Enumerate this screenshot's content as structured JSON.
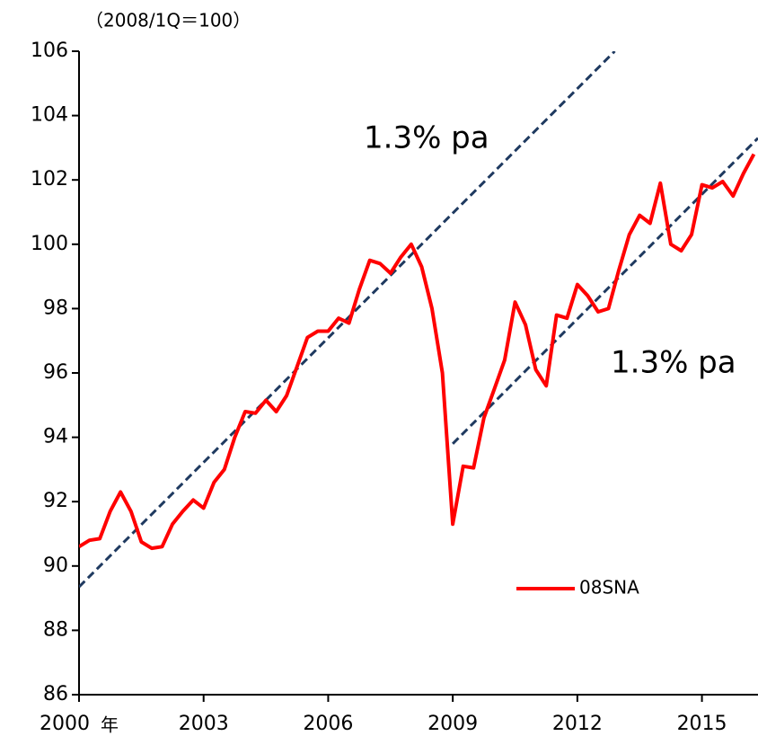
{
  "chart_data": {
    "type": "line",
    "y_unit_label": "（2008/1Q＝100）",
    "x_unit_label": "年",
    "annotations": [
      "1.3% pa",
      "1.3% pa"
    ],
    "xlim": [
      2000,
      2016.35
    ],
    "xticks": [
      2000,
      2003,
      2006,
      2009,
      2012,
      2015
    ],
    "ylim": [
      86,
      106
    ],
    "yticks": [
      86,
      88,
      90,
      92,
      94,
      96,
      98,
      100,
      102,
      104,
      106
    ],
    "legend": "lower right",
    "series": [
      {
        "name": "08SNA",
        "color": "#ff0000",
        "x": [
          2000,
          2000.25,
          2000.5,
          2000.75,
          2001,
          2001.25,
          2001.5,
          2001.75,
          2002,
          2002.25,
          2002.5,
          2002.75,
          2003,
          2003.25,
          2003.5,
          2003.75,
          2004,
          2004.25,
          2004.5,
          2004.75,
          2005,
          2005.25,
          2005.5,
          2005.75,
          2006,
          2006.25,
          2006.5,
          2006.75,
          2007,
          2007.25,
          2007.5,
          2007.75,
          2008,
          2008.25,
          2008.5,
          2008.75,
          2009,
          2009.25,
          2009.5,
          2009.75,
          2010,
          2010.25,
          2010.5,
          2010.75,
          2011,
          2011.25,
          2011.5,
          2011.75,
          2012,
          2012.25,
          2012.5,
          2012.75,
          2013,
          2013.25,
          2013.5,
          2013.75,
          2014,
          2014.25,
          2014.5,
          2014.75,
          2015,
          2015.25,
          2015.5,
          2015.75,
          2016,
          2016.25
        ],
        "values": [
          90.6,
          90.8,
          90.85,
          91.7,
          92.3,
          91.7,
          90.75,
          90.55,
          90.6,
          91.3,
          91.7,
          92.05,
          91.8,
          92.6,
          93.0,
          94.0,
          94.8,
          94.75,
          95.15,
          94.8,
          95.3,
          96.2,
          97.1,
          97.3,
          97.3,
          97.7,
          97.55,
          98.6,
          99.5,
          99.4,
          99.1,
          99.6,
          100.0,
          99.3,
          98.0,
          96.0,
          91.3,
          93.1,
          93.05,
          94.6,
          95.5,
          96.4,
          98.2,
          97.5,
          96.1,
          95.6,
          97.8,
          97.7,
          98.75,
          98.4,
          97.9,
          98.0,
          99.2,
          100.3,
          100.9,
          100.65,
          101.9,
          100.0,
          99.8,
          100.3,
          101.85,
          101.75,
          101.95,
          101.5,
          102.2,
          102.8
        ]
      }
    ],
    "trend_lines": [
      {
        "color": "#1f3a60",
        "dashed": true,
        "x": [
          2000,
          2012.9
        ],
        "values": [
          89.35,
          106
        ]
      },
      {
        "color": "#1f3a60",
        "dashed": true,
        "x": [
          2009,
          2016.35
        ],
        "values": [
          93.8,
          103.3
        ]
      }
    ]
  }
}
